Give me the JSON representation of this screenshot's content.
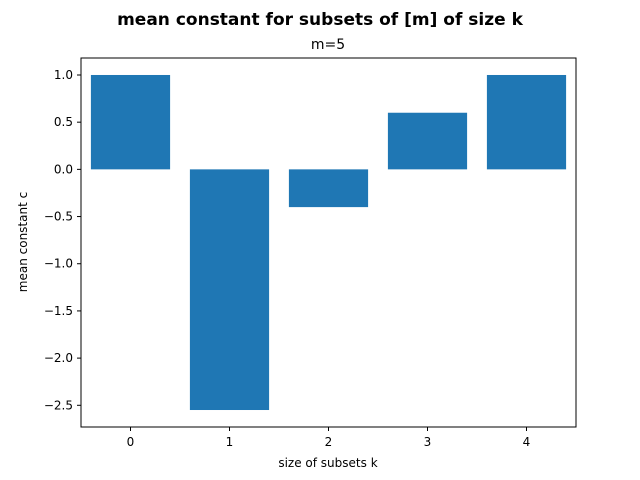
{
  "chart_data": {
    "type": "bar",
    "suptitle": "mean constant for subsets of [m] of size k",
    "title": "m=5",
    "xlabel": "size of subsets k",
    "ylabel": "mean constant c",
    "categories": [
      "0",
      "1",
      "2",
      "3",
      "4"
    ],
    "values": [
      1.0,
      -2.55,
      -0.4,
      0.6,
      1.0
    ],
    "yticks": [
      1.0,
      0.5,
      0.0,
      -0.5,
      -1.0,
      -1.5,
      -2.0,
      -2.5
    ],
    "ytick_labels": [
      "1.0",
      "0.5",
      "0.0",
      "−0.5",
      "−1.0",
      "−1.5",
      "−2.0",
      "−2.5"
    ],
    "ylim": [
      -2.73,
      1.18
    ],
    "xlim": [
      -0.5,
      4.5
    ],
    "bar_width": 0.8,
    "bar_color": "#1f77b4",
    "grid": false
  }
}
